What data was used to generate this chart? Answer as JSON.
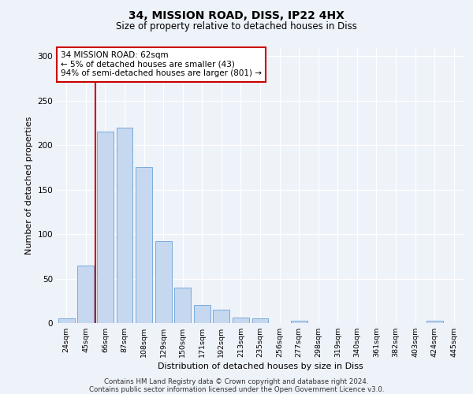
{
  "title1": "34, MISSION ROAD, DISS, IP22 4HX",
  "title2": "Size of property relative to detached houses in Diss",
  "xlabel": "Distribution of detached houses by size in Diss",
  "ylabel": "Number of detached properties",
  "categories": [
    "24sqm",
    "45sqm",
    "66sqm",
    "87sqm",
    "108sqm",
    "129sqm",
    "150sqm",
    "171sqm",
    "192sqm",
    "213sqm",
    "235sqm",
    "256sqm",
    "277sqm",
    "298sqm",
    "319sqm",
    "340sqm",
    "361sqm",
    "382sqm",
    "403sqm",
    "424sqm",
    "445sqm"
  ],
  "values": [
    5,
    65,
    215,
    220,
    175,
    92,
    40,
    20,
    15,
    6,
    5,
    0,
    3,
    0,
    0,
    0,
    0,
    0,
    0,
    3,
    0
  ],
  "bar_color": "#c5d8f0",
  "bar_edge_color": "#7aabdb",
  "marker_color": "#cc0000",
  "annotation_text": "34 MISSION ROAD: 62sqm\n← 5% of detached houses are smaller (43)\n94% of semi-detached houses are larger (801) →",
  "annotation_box_color": "#ffffff",
  "annotation_box_edge_color": "#cc0000",
  "ylim": [
    0,
    310
  ],
  "yticks": [
    0,
    50,
    100,
    150,
    200,
    250,
    300
  ],
  "footer1": "Contains HM Land Registry data © Crown copyright and database right 2024.",
  "footer2": "Contains public sector information licensed under the Open Government Licence v3.0.",
  "bg_color": "#eef2f9",
  "grid_color": "#ffffff"
}
